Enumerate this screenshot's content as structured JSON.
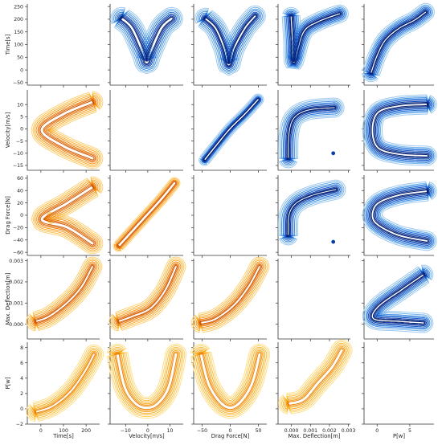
{
  "chart_data": {
    "type": "pairplot-kde",
    "variables": [
      "Time[s]",
      "Velocity[m/s]",
      "Drag Force[N]",
      "Max. Deflection[m]",
      "P[w]"
    ],
    "axes": [
      {
        "label": "Time[s]",
        "lim": [
          -60,
          260
        ],
        "ticks": [
          -50,
          0,
          50,
          100,
          150,
          200,
          250
        ],
        "tick_labels": [
          "−50",
          "0",
          "50",
          "100",
          "150",
          "200",
          "250"
        ],
        "x_ticks": [
          0,
          100,
          200
        ],
        "x_tick_labels": [
          "0",
          "100",
          "200"
        ]
      },
      {
        "label": "Velocity[m/s]",
        "lim": [
          -17,
          16
        ],
        "ticks": [
          -15,
          -10,
          -5,
          0,
          5,
          10
        ],
        "tick_labels": [
          "−15",
          "−10",
          "−5",
          "0",
          "5",
          "10"
        ],
        "x_ticks": [
          -10,
          0,
          10
        ],
        "x_tick_labels": [
          "−10",
          "0",
          "10"
        ]
      },
      {
        "label": "Drag Force[N]",
        "lim": [
          -65,
          65
        ],
        "ticks": [
          -60,
          -40,
          -20,
          0,
          20,
          40,
          60
        ],
        "tick_labels": [
          "−60",
          "−40",
          "−20",
          "0",
          "20",
          "40",
          "60"
        ],
        "x_ticks": [
          -50,
          0,
          50
        ],
        "x_tick_labels": [
          "−50",
          "0",
          "50"
        ]
      },
      {
        "label": "Max. Deflection[m]",
        "lim": [
          -0.0007,
          0.0031
        ],
        "ticks": [
          0.0,
          0.001,
          0.002,
          0.003
        ],
        "tick_labels": [
          "0.000",
          "0.001",
          "0.002",
          "0.003"
        ],
        "x_ticks": [
          0.0,
          0.001,
          0.002,
          0.003
        ],
        "x_tick_labels": [
          "0.000",
          "0.001",
          "0.002",
          "0.003"
        ]
      },
      {
        "label": "P[w]",
        "lim": [
          -2,
          8.7
        ],
        "ticks": [
          -2,
          0,
          2,
          4,
          6,
          8
        ],
        "tick_labels": [
          "−2",
          "0",
          "2",
          "4",
          "6",
          "8"
        ],
        "x_ticks": [
          0,
          5
        ],
        "x_tick_labels": [
          "0",
          "5"
        ]
      }
    ],
    "outlier_points": [
      {
        "x_var": "Max. Deflection[m]",
        "y_var": "Velocity[m/s]",
        "x": 0.0022,
        "y": -10
      },
      {
        "x_var": "Max. Deflection[m]",
        "y_var": "Drag Force[N]",
        "x": 0.0022,
        "y": -43
      }
    ],
    "diagonal": "empty",
    "upper_triangle_palette": "blues",
    "lower_triangle_palette": "oranges",
    "grid": false,
    "legend": "none"
  }
}
